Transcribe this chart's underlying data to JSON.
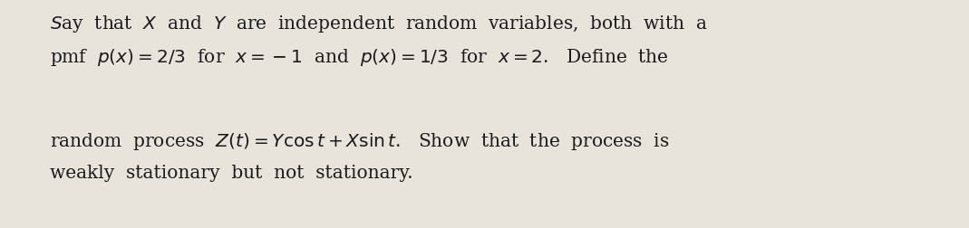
{
  "line1": "Say that $\\it{X}$ and $\\it{Y}$ are independent random variables, both with a",
  "line2": "pmf  $p(x)=2/3$  for  $x=-1$  and  $p(x)=1/3$  for  $x=2$.   Define  the",
  "line3": "random  process  $Z(t) = Y\\cos t + X\\sin t$.   Show  that  the  process  is",
  "line4": "weakly  stationary  but  not  stationary.",
  "bg_color": "#e8e4dc",
  "text_color": "#1a1a1a",
  "fontsize": 14.5,
  "fig_width": 10.69,
  "fig_height": 2.52
}
